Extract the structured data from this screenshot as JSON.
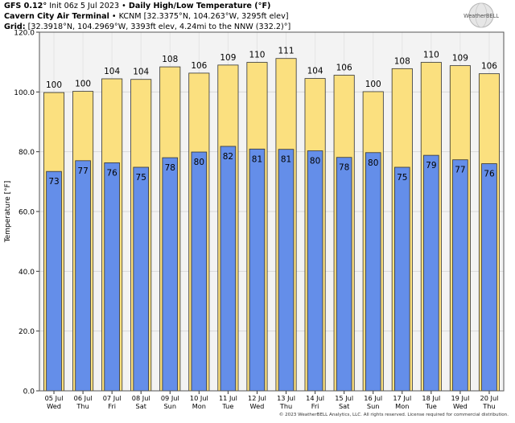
{
  "header": {
    "model": "GFS 0.12°",
    "init": "Init 06z 5 Jul 2023",
    "title": "Daily High/Low Temperature (°F)",
    "station_name": "Cavern City Air Terminal",
    "station_info": "KCNM [32.3375°N, 104.263°W, 3295ft elev]",
    "grid_label": "Grid:",
    "grid_info": "[32.3918°N, 104.2969°W, 3393ft elev, 4.24mi to the NNW (332.2)°]",
    "bullet": "•"
  },
  "logo": {
    "text": "WeatherBELL"
  },
  "footer": "© 2023 WeatherBELL Analytics, LLC. All rights reserved. License required for commercial distribution.",
  "colors": {
    "high": "#fbe07f",
    "low": "#648ee9",
    "plot_bg": "#f3f3f3",
    "outline": "#333333"
  },
  "chart_data": {
    "type": "bar",
    "title": "Daily High/Low Temperature (°F)",
    "ylabel": "Temperature [°F]",
    "xlabel": "",
    "ylim": [
      0,
      120
    ],
    "yticks": [
      "0.0",
      "20.0",
      "40.0",
      "60.0",
      "80.0",
      "100.0",
      "120.0"
    ],
    "grid": true,
    "categories": [
      [
        "05 Jul",
        "Wed"
      ],
      [
        "06 Jul",
        "Thu"
      ],
      [
        "07 Jul",
        "Fri"
      ],
      [
        "08 Jul",
        "Sat"
      ],
      [
        "09 Jul",
        "Sun"
      ],
      [
        "10 Jul",
        "Mon"
      ],
      [
        "11 Jul",
        "Tue"
      ],
      [
        "12 Jul",
        "Wed"
      ],
      [
        "13 Jul",
        "Thu"
      ],
      [
        "14 Jul",
        "Fri"
      ],
      [
        "15 Jul",
        "Sat"
      ],
      [
        "16 Jul",
        "Sun"
      ],
      [
        "17 Jul",
        "Mon"
      ],
      [
        "18 Jul",
        "Tue"
      ],
      [
        "19 Jul",
        "Wed"
      ],
      [
        "20 Jul",
        "Thu"
      ]
    ],
    "series": [
      {
        "name": "High",
        "values": [
          99.8,
          100.2,
          104.4,
          104.2,
          108.4,
          106.3,
          109.0,
          109.9,
          111.2,
          104.5,
          105.6,
          100.1,
          107.8,
          109.9,
          108.8,
          106.1
        ],
        "labels": [
          "100",
          "100",
          "104",
          "104",
          "108",
          "106",
          "109",
          "110",
          "111",
          "104",
          "106",
          "100",
          "108",
          "110",
          "109",
          "106"
        ]
      },
      {
        "name": "Low",
        "values": [
          73.4,
          77.0,
          76.3,
          74.8,
          78.0,
          79.9,
          81.8,
          80.9,
          80.8,
          80.3,
          78.1,
          79.7,
          74.8,
          78.8,
          77.3,
          76.0
        ],
        "labels": [
          "73",
          "77",
          "76",
          "75",
          "78",
          "80",
          "82",
          "81",
          "81",
          "80",
          "78",
          "80",
          "75",
          "79",
          "77",
          "76"
        ]
      }
    ]
  }
}
